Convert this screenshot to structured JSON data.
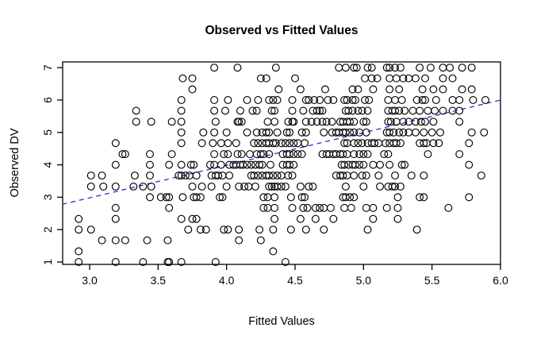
{
  "figure": {
    "background": "#ffffff",
    "point_color": "#000000",
    "axis_color": "#000000"
  },
  "chart_data": {
    "type": "scatter",
    "title": "Observed vs Fitted Values",
    "xlabel": "Fitted Values",
    "ylabel": "Observed DV",
    "xlim": [
      2.8,
      6.03
    ],
    "ylim": [
      0.93,
      7.18
    ],
    "grid": false,
    "legend": "none",
    "x_ticks": {
      "values": [
        3.0,
        3.5,
        4.0,
        4.5,
        5.0,
        5.5,
        6.0
      ],
      "labels": [
        "3.0",
        "3.5",
        "4.0",
        "4.5",
        "5.0",
        "5.5",
        "6.0"
      ]
    },
    "y_ticks": {
      "values": [
        1,
        2,
        3,
        4,
        5,
        6,
        7
      ],
      "labels": [
        "1",
        "2",
        "3",
        "4",
        "5",
        "6",
        "7"
      ]
    },
    "point_style": {
      "marker": "open-circle",
      "radius_px": 4.4,
      "color": "#000000"
    },
    "trend_line": {
      "x1": 2.8,
      "y1": 2.78,
      "x2": 6.0,
      "y2": 6.0,
      "color": "#2b2be0",
      "style": "dashed"
    },
    "series": [
      {
        "y": 7.0,
        "x": [
          3.91,
          4.08,
          4.36,
          4.82,
          4.87,
          4.93,
          4.95,
          5.03,
          5.06,
          5.17,
          5.19,
          5.23,
          5.27,
          5.41,
          5.49,
          5.58,
          5.63,
          5.72,
          5.79
        ]
      },
      {
        "y": 6.67,
        "x": [
          3.68,
          3.75,
          4.25,
          4.29,
          4.5,
          5.01,
          5.06,
          5.1,
          5.19,
          5.24,
          5.29,
          5.33,
          5.38,
          5.45,
          5.58,
          5.65
        ]
      },
      {
        "y": 6.33,
        "x": [
          3.75,
          4.38,
          4.54,
          4.72,
          4.92,
          4.96,
          5.07,
          5.19,
          5.26,
          5.43,
          5.51,
          5.58,
          5.72,
          5.79
        ]
      },
      {
        "y": 6.0,
        "x": [
          3.67,
          3.91,
          4.01,
          4.15,
          4.23,
          4.31,
          4.34,
          4.37,
          4.48,
          4.58,
          4.6,
          4.64,
          4.68,
          4.74,
          4.78,
          4.86,
          4.88,
          4.92,
          4.94,
          5.01,
          5.04,
          5.18,
          5.23,
          5.28,
          5.39,
          5.43,
          5.45,
          5.53,
          5.65,
          5.7,
          5.8,
          5.89
        ]
      },
      {
        "y": 5.67,
        "x": [
          3.34,
          3.67,
          3.91,
          3.99,
          4.1,
          4.19,
          4.22,
          4.33,
          4.35,
          4.48,
          4.56,
          4.63,
          4.66,
          4.68,
          4.7,
          4.87,
          4.89,
          4.92,
          4.96,
          4.99,
          5.03,
          5.18,
          5.21,
          5.23,
          5.26,
          5.3,
          5.36,
          5.41,
          5.47,
          5.52,
          5.58,
          5.65,
          5.7
        ]
      },
      {
        "y": 5.33,
        "x": [
          3.34,
          3.45,
          3.6,
          3.67,
          3.92,
          4.08,
          4.09,
          4.11,
          4.3,
          4.35,
          4.45,
          4.48,
          4.49,
          4.58,
          4.62,
          4.66,
          4.7,
          4.73,
          4.77,
          4.83,
          4.85,
          4.88,
          4.9,
          4.93,
          5.0,
          5.02,
          5.18,
          5.2,
          5.24,
          5.29,
          5.33,
          5.38,
          5.42,
          5.45,
          5.51,
          5.7
        ]
      },
      {
        "y": 5.0,
        "x": [
          3.67,
          3.83,
          3.91,
          4.0,
          4.15,
          4.22,
          4.26,
          4.29,
          4.31,
          4.37,
          4.44,
          4.46,
          4.55,
          4.58,
          4.71,
          4.77,
          4.8,
          4.82,
          4.85,
          4.87,
          4.9,
          4.93,
          4.97,
          5.02,
          5.17,
          5.19,
          5.22,
          5.26,
          5.29,
          5.33,
          5.38,
          5.44,
          5.5,
          5.56,
          5.79,
          5.88
        ]
      },
      {
        "y": 4.67,
        "x": [
          3.19,
          3.67,
          3.82,
          3.9,
          3.96,
          4.01,
          4.07,
          4.2,
          4.23,
          4.26,
          4.29,
          4.31,
          4.34,
          4.36,
          4.4,
          4.43,
          4.46,
          4.49,
          4.52,
          4.57,
          4.86,
          4.88,
          4.93,
          4.96,
          4.99,
          5.03,
          5.06,
          5.08,
          5.11,
          5.16,
          5.19,
          5.22,
          5.24,
          5.27,
          5.41,
          5.44,
          5.46,
          5.51,
          5.55,
          5.77
        ]
      },
      {
        "y": 4.33,
        "x": [
          3.24,
          3.26,
          3.44,
          3.6,
          3.91,
          3.98,
          4.01,
          4.08,
          4.11,
          4.17,
          4.22,
          4.25,
          4.27,
          4.31,
          4.41,
          4.44,
          4.46,
          4.49,
          4.52,
          4.55,
          4.7,
          4.73,
          4.75,
          4.78,
          4.8,
          4.83,
          4.85,
          4.88,
          4.93,
          4.97,
          5.0,
          5.03,
          5.15,
          5.18,
          5.47,
          5.7
        ]
      },
      {
        "y": 4.0,
        "x": [
          3.19,
          3.44,
          3.58,
          3.67,
          3.74,
          3.76,
          3.88,
          3.91,
          3.96,
          4.02,
          4.05,
          4.07,
          4.1,
          4.12,
          4.15,
          4.18,
          4.21,
          4.24,
          4.26,
          4.32,
          4.41,
          4.44,
          4.46,
          4.49,
          4.84,
          4.86,
          4.89,
          4.92,
          4.94,
          4.97,
          5.0,
          5.07,
          5.12,
          5.19,
          5.28,
          5.3,
          5.77
        ]
      },
      {
        "y": 3.67,
        "x": [
          3.01,
          3.09,
          3.33,
          3.44,
          3.65,
          3.67,
          3.7,
          3.73,
          3.78,
          3.89,
          3.92,
          3.94,
          3.97,
          4.02,
          4.18,
          4.2,
          4.23,
          4.26,
          4.29,
          4.31,
          4.34,
          4.37,
          4.4,
          4.45,
          4.48,
          4.8,
          4.83,
          4.85,
          4.88,
          4.93,
          4.99,
          5.02,
          5.11,
          5.23,
          5.35,
          5.44,
          5.86
        ]
      },
      {
        "y": 3.33,
        "x": [
          3.01,
          3.1,
          3.19,
          3.32,
          3.39,
          3.45,
          3.75,
          3.82,
          3.89,
          4.0,
          4.09,
          4.13,
          4.16,
          4.21,
          4.31,
          4.33,
          4.35,
          4.37,
          4.4,
          4.43,
          4.54,
          4.6,
          4.63,
          4.87,
          5.0,
          5.12,
          5.18,
          5.21,
          5.23,
          5.27
        ]
      },
      {
        "y": 3.0,
        "x": [
          3.44,
          3.52,
          3.56,
          3.58,
          3.68,
          3.76,
          3.78,
          3.81,
          3.95,
          3.97,
          4.27,
          4.3,
          4.35,
          4.47,
          4.55,
          4.57,
          4.85,
          4.87,
          4.9,
          4.93,
          5.25,
          5.41,
          5.44,
          5.77
        ]
      },
      {
        "y": 2.67,
        "x": [
          3.19,
          3.58,
          4.27,
          4.3,
          4.35,
          4.48,
          4.56,
          4.59,
          4.65,
          4.68,
          4.71,
          4.76,
          4.86,
          4.91,
          5.02,
          5.07,
          5.17,
          5.25,
          5.62
        ]
      },
      {
        "y": 2.33,
        "x": [
          2.92,
          3.19,
          3.67,
          3.75,
          3.78,
          4.35,
          4.54,
          4.65,
          4.78,
          5.07,
          5.25
        ]
      },
      {
        "y": 2.0,
        "x": [
          2.92,
          3.01,
          3.72,
          3.81,
          3.85,
          3.98,
          4.01,
          4.09,
          4.24,
          4.34,
          4.47,
          4.58,
          4.71,
          5.03,
          5.39
        ]
      },
      {
        "y": 1.67,
        "x": [
          3.09,
          3.19,
          3.26,
          3.42,
          3.57,
          4.09,
          4.25
        ]
      },
      {
        "y": 1.33,
        "x": [
          2.92,
          4.34
        ]
      },
      {
        "y": 1.0,
        "x": [
          2.92,
          3.19,
          3.39,
          3.57,
          3.58,
          3.67,
          3.92,
          4.43
        ]
      }
    ]
  }
}
